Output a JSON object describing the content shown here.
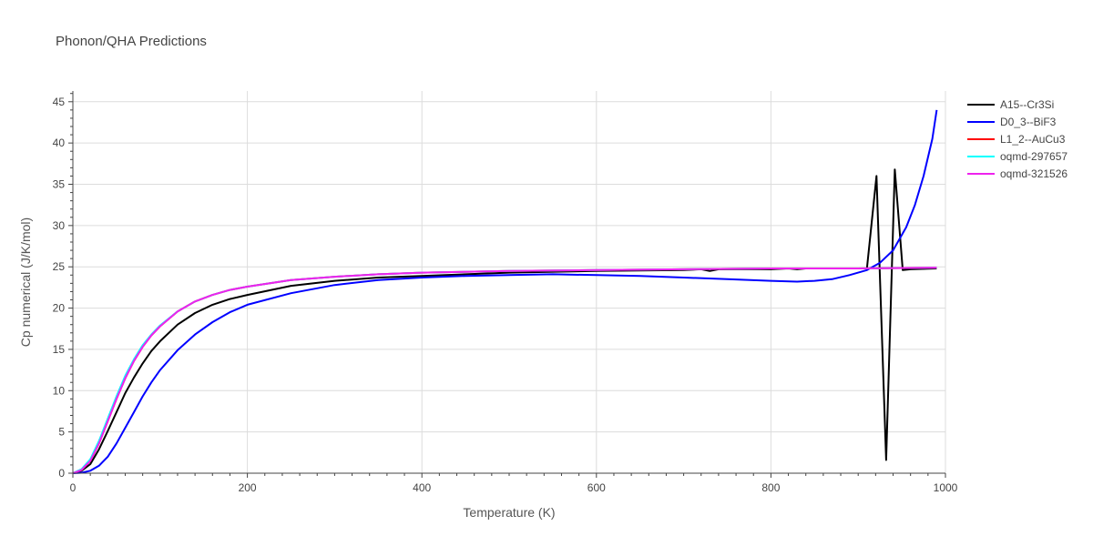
{
  "chart_data": {
    "type": "line",
    "title": "Phonon/QHA Predictions",
    "xlabel": "Temperature (K)",
    "ylabel": "Cp numerical (J/K/mol)",
    "xlim": [
      0,
      1000
    ],
    "ylim": [
      0,
      46.3
    ],
    "xticks": [
      0,
      200,
      400,
      600,
      800,
      1000
    ],
    "yticks": [
      0,
      5,
      10,
      15,
      20,
      25,
      30,
      35,
      40,
      45
    ],
    "grid": true,
    "legend_position": "top-right",
    "series": [
      {
        "name": "A15--Cr3Si",
        "color": "#000000",
        "x": [
          0,
          10,
          20,
          30,
          40,
          50,
          60,
          70,
          80,
          90,
          100,
          120,
          140,
          160,
          180,
          200,
          250,
          300,
          350,
          400,
          500,
          600,
          700,
          720,
          730,
          740,
          800,
          820,
          830,
          840,
          900,
          910,
          921,
          932,
          942,
          951,
          960,
          990
        ],
        "y": [
          0,
          0.3,
          1.1,
          2.9,
          5.1,
          7.4,
          9.7,
          11.6,
          13.3,
          14.8,
          16.0,
          18.0,
          19.4,
          20.4,
          21.1,
          21.6,
          22.7,
          23.3,
          23.7,
          23.9,
          24.3,
          24.5,
          24.6,
          24.7,
          24.5,
          24.7,
          24.7,
          24.8,
          24.7,
          24.8,
          24.8,
          24.8,
          36.0,
          1.6,
          36.8,
          24.6,
          24.7,
          24.8
        ]
      },
      {
        "name": "D0_3--BiF3",
        "color": "#0000ff",
        "x": [
          0,
          10,
          20,
          30,
          40,
          50,
          60,
          70,
          80,
          90,
          100,
          120,
          140,
          160,
          180,
          200,
          250,
          300,
          350,
          400,
          450,
          500,
          550,
          600,
          650,
          700,
          750,
          800,
          830,
          850,
          870,
          890,
          910,
          925,
          940,
          955,
          965,
          975,
          985,
          990
        ],
        "y": [
          0,
          0.05,
          0.3,
          0.9,
          2.0,
          3.6,
          5.5,
          7.4,
          9.3,
          11.0,
          12.5,
          14.9,
          16.8,
          18.3,
          19.5,
          20.4,
          21.8,
          22.8,
          23.4,
          23.7,
          23.9,
          24.0,
          24.1,
          24.0,
          23.9,
          23.7,
          23.5,
          23.3,
          23.2,
          23.3,
          23.5,
          24.0,
          24.6,
          25.5,
          27.0,
          29.8,
          32.5,
          36.0,
          40.5,
          44.0
        ]
      },
      {
        "name": "L1_2--AuCu3",
        "color": "#ff0000",
        "x": [
          0,
          10,
          20,
          30,
          40,
          50,
          60,
          70,
          80,
          90,
          100,
          120,
          140,
          160,
          180,
          200,
          250,
          300,
          350,
          400,
          500,
          600,
          700,
          800,
          900,
          990
        ],
        "y": [
          0,
          0.4,
          1.5,
          3.6,
          6.3,
          9.0,
          11.5,
          13.6,
          15.3,
          16.7,
          17.8,
          19.6,
          20.8,
          21.6,
          22.2,
          22.6,
          23.4,
          23.8,
          24.1,
          24.3,
          24.5,
          24.6,
          24.7,
          24.8,
          24.8,
          24.9
        ]
      },
      {
        "name": "oqmd-297657",
        "color": "#00ffff",
        "x": [
          0,
          10,
          20,
          30,
          40,
          50,
          60,
          70,
          80,
          90,
          100,
          120,
          140,
          160,
          180,
          200,
          250,
          300,
          350,
          400,
          500,
          600,
          700,
          800,
          900,
          990
        ],
        "y": [
          0,
          0.5,
          1.7,
          3.9,
          6.6,
          9.3,
          11.8,
          13.8,
          15.5,
          16.8,
          17.9,
          19.6,
          20.8,
          21.6,
          22.2,
          22.6,
          23.4,
          23.8,
          24.1,
          24.3,
          24.5,
          24.6,
          24.7,
          24.8,
          24.8,
          24.9
        ]
      },
      {
        "name": "oqmd-321526",
        "color": "#ee22ee",
        "x": [
          0,
          10,
          20,
          30,
          40,
          50,
          60,
          70,
          80,
          90,
          100,
          120,
          140,
          160,
          180,
          200,
          250,
          300,
          350,
          400,
          500,
          600,
          700,
          800,
          900,
          990
        ],
        "y": [
          0,
          0.4,
          1.5,
          3.6,
          6.3,
          9.0,
          11.5,
          13.6,
          15.3,
          16.7,
          17.8,
          19.6,
          20.8,
          21.6,
          22.2,
          22.6,
          23.4,
          23.8,
          24.1,
          24.3,
          24.5,
          24.6,
          24.7,
          24.8,
          24.8,
          24.9
        ]
      }
    ]
  }
}
